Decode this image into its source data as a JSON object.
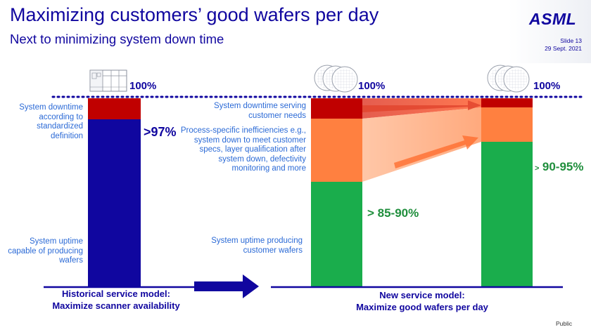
{
  "header": {
    "title": "Maximizing customers’ good wafers per day",
    "subtitle": "Next to minimizing system down time",
    "logo_text": "ASML",
    "slide_number": "Slide 13",
    "date": "29 Sept. 2021"
  },
  "historical": {
    "top_pct": "100%",
    "downtime_label": "System downtime according to standardized definition",
    "availability_pct": ">97%",
    "uptime_label": "System uptime capable of producing wafers",
    "caption_line1": "Historical service model:",
    "caption_line2": "Maximize scanner availability"
  },
  "new_model": {
    "left_top_pct": "100%",
    "right_top_pct": "100%",
    "downtime_label": "System downtime serving customer needs",
    "inefficiency_label": "Process-specific inefficiencies e.g., system down to meet customer specs, layer qualification after system down, defectivity monitoring and more",
    "uptime_label": "System uptime  producing customer wafers",
    "left_good_pct": "> 85-90%",
    "right_good_prefix": ">",
    "right_good_pct": "90-95%",
    "caption_line1": "New service model:",
    "caption_line2": "Maximize good wafers per day"
  },
  "colors": {
    "navy": "#10069f",
    "downtime_red": "#c00000",
    "inefficiency_orange": "#ff8040",
    "good_green": "#1aad4c",
    "label_blue": "#2b6ad6"
  },
  "footer": {
    "classification": "Public"
  }
}
